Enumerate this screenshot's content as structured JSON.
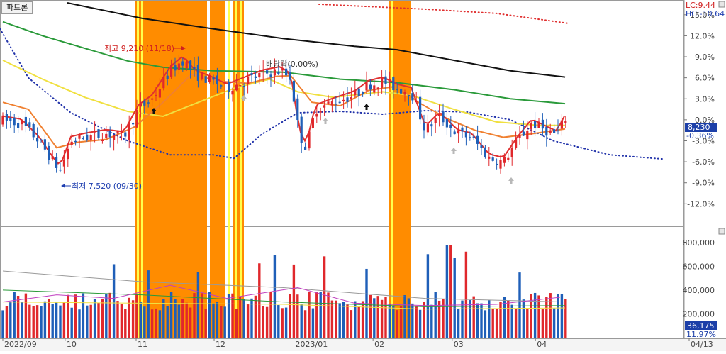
{
  "tab_label": "파트론",
  "colors": {
    "up": "#e0282c",
    "down": "#1f5fb8",
    "highlight": "#ff8c00",
    "highlight_line": "#ffff4d",
    "ma5": "#e03030",
    "ma20": "#f08030",
    "ma60": "#f0e040",
    "ma120": "#2a9a3a",
    "ma240": "#111111",
    "envelope_low": "#2233aa",
    "envelope_high": "#e03030",
    "badge": "#1c3fa8"
  },
  "top_right": {
    "lc": "LC:9.44",
    "hc": "HC:-10.64"
  },
  "price_badge": {
    "price": "8,230",
    "change": "-0.36%"
  },
  "volume_badge": {
    "volume": "36,175",
    "change": "11.97%"
  },
  "annotations": {
    "high": "최고 9,210 (11/18)",
    "low": "최저 7,520 (09/30)",
    "dividend": "배당락(0.00%)"
  },
  "chart_data": [
    {
      "type": "line",
      "name": "price-panel",
      "y_axis_side": "right",
      "y_axis_unit": "%",
      "yticks": [
        "15.0%",
        "12.0%",
        "9.0%",
        "6.0%",
        "3.0%",
        "0.0%",
        "-3.0%",
        "-6.0%",
        "-9.0%",
        "-12.0%"
      ],
      "ytick_values": [
        15,
        12,
        9,
        6,
        3,
        0,
        -3,
        -6,
        -9,
        -12
      ],
      "ylim": [
        -14.5,
        16.5
      ],
      "x_range": [
        0,
        1
      ]
    },
    {
      "type": "bar",
      "name": "volume-panel",
      "y_axis_side": "right",
      "yticks": [
        "800,000",
        "600,000",
        "400,000",
        "200,000"
      ],
      "ytick_values": [
        800000,
        600000,
        400000,
        200000
      ],
      "ylim": [
        0,
        900000
      ]
    }
  ],
  "x_axis": {
    "labels": [
      {
        "label": "2022/09",
        "at": 0.0
      },
      {
        "label": "10",
        "at": 0.107
      },
      {
        "label": "11",
        "at": 0.229
      },
      {
        "label": "12",
        "at": 0.363
      },
      {
        "label": "2023/01",
        "at": 0.5
      },
      {
        "label": "02",
        "at": 0.636
      },
      {
        "label": "03",
        "at": 0.772
      },
      {
        "label": "04",
        "at": 0.915
      },
      {
        "label": "04/13",
        "at": 1.0
      }
    ]
  }
}
